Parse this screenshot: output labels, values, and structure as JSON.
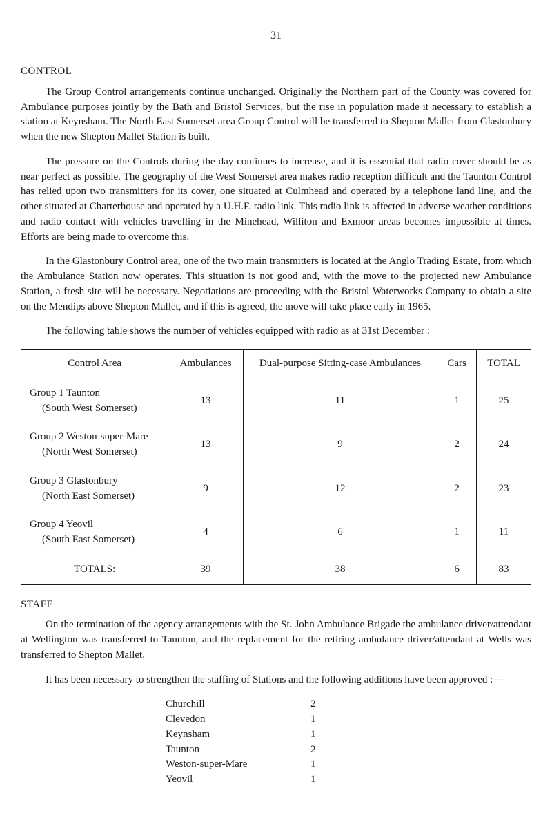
{
  "page_number": "31",
  "section_control": {
    "heading": "CONTROL",
    "p1": "The Group Control arrangements continue unchanged. Originally the Northern part of the County was covered for Ambulance purposes jointly by the Bath and Bristol Ser­vices, but the rise in population made it necessary to establish a station at Keynsham. The North East Somerset area Group Control will be transferred to Shepton Mallet from Glastonbury when the new Shepton Mallet Station is built.",
    "p2": "The pressure on the Controls during the day continues to increase, and it is essen­tial that radio cover should be as near perfect as possible. The geography of the West Somerset area makes radio reception difficult and the Taunton Control has relied upon two transmitters for its cover, one situated at Culmhead and operated by a telephone land line, and the other situated at Charterhouse and operated by a U.H.F. radio link. This radio link is affected in adverse weather conditions and radio contact with vehicles travelling in the Minehead, Williton and Exmoor areas becomes impossible at times. Efforts are being made to overcome this.",
    "p3": "In the Glastonbury Control area, one of the two main transmitters is located at the Anglo Trading Estate, from which the Ambulance Station now operates. This situation is not good and, with the move to the projected new Ambulance Station, a fresh site will be necessary. Negotiations are proceeding with the Bristol Waterworks Company to obtain a site on the Mendips above Shepton Mallet, and if this is agreed, the move will take place early in 1965.",
    "p4": "The following table shows the number of vehicles equipped with radio as at 31st December :"
  },
  "vehicle_table": {
    "columns": [
      "Control Area",
      "Ambulances",
      "Dual-purpose Sitting-case Ambulances",
      "Cars",
      "TOTAL"
    ],
    "rows": [
      {
        "area_main": "Group 1 Taunton",
        "area_sub": "(South West Somerset)",
        "ambulances": "13",
        "dual": "11",
        "cars": "1",
        "total": "25"
      },
      {
        "area_main": "Group 2 Weston-super-Mare",
        "area_sub": "(North West Somerset)",
        "ambulances": "13",
        "dual": "9",
        "cars": "2",
        "total": "24"
      },
      {
        "area_main": "Group 3 Glastonbury",
        "area_sub": "(North East Somerset)",
        "ambulances": "9",
        "dual": "12",
        "cars": "2",
        "total": "23"
      },
      {
        "area_main": "Group 4 Yeovil",
        "area_sub": "(South East Somerset)",
        "ambulances": "4",
        "dual": "6",
        "cars": "1",
        "total": "11"
      }
    ],
    "totals": {
      "label": "TOTALS:",
      "ambulances": "39",
      "dual": "38",
      "cars": "6",
      "total": "83"
    }
  },
  "section_staff": {
    "heading": "STAFF",
    "p1": "On the termination of the agency arrangements with the St. John Ambulance Brigade the ambulance driver/attendant at Wellington was transferred to Taunton, and the replace­ment for the retiring ambulance driver/attendant at Wells was transferred to Shepton Mallet.",
    "p2": "It has been necessary to strengthen the staffing of Stations and the following addi­tions have been approved :—",
    "additions": [
      {
        "label": "Churchill",
        "val": "2"
      },
      {
        "label": "Clevedon",
        "val": "1"
      },
      {
        "label": "Keynsham",
        "val": "1"
      },
      {
        "label": "Taunton",
        "val": "2"
      },
      {
        "label": "Weston-super-Mare",
        "val": "1"
      },
      {
        "label": "Yeovil",
        "val": "1"
      }
    ]
  }
}
